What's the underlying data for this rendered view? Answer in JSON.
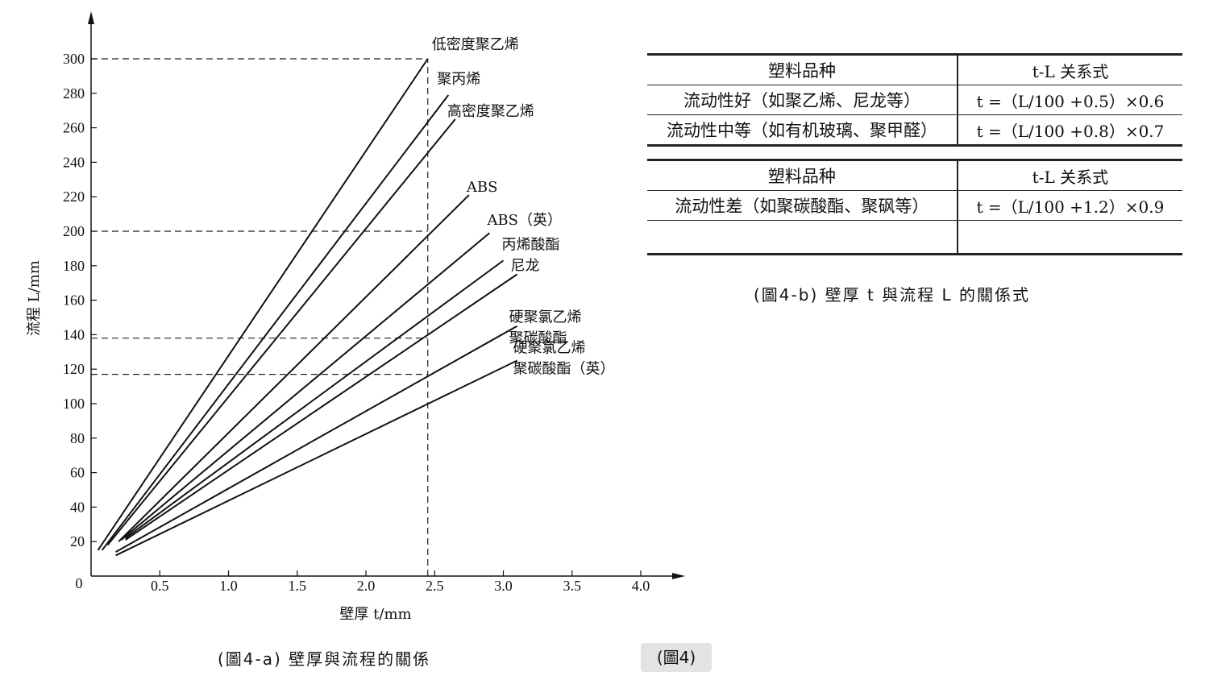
{
  "chart_data": {
    "type": "line",
    "title": "",
    "xlabel": "壁厚 t/mm",
    "ylabel": "流程 L/mm",
    "origin_label": "0",
    "xlim": [
      0,
      4.3
    ],
    "ylim": [
      0,
      320
    ],
    "x_ticks": [
      0.5,
      1.0,
      1.5,
      2.0,
      2.5,
      3.0,
      3.5,
      4.0
    ],
    "x_tick_labels": [
      "0.5",
      "1.0",
      "1.5",
      "2.0",
      "2.5",
      "3.0",
      "3.5",
      "4.0"
    ],
    "y_ticks": [
      20,
      40,
      60,
      80,
      100,
      120,
      140,
      160,
      180,
      200,
      220,
      240,
      260,
      280,
      300
    ],
    "y_tick_labels": [
      "20",
      "40",
      "60",
      "80",
      "100",
      "120",
      "140",
      "160",
      "180",
      "200",
      "220",
      "240",
      "260",
      "280",
      "300"
    ],
    "grid": false,
    "series": [
      {
        "name": "低密度聚乙烯",
        "x": [
          0.05,
          2.45
        ],
        "y": [
          15,
          300
        ]
      },
      {
        "name": "聚丙烯",
        "x": [
          0.08,
          2.6
        ],
        "y": [
          15,
          279
        ]
      },
      {
        "name": "高密度聚乙烯",
        "x": [
          0.12,
          2.65
        ],
        "y": [
          18,
          265
        ]
      },
      {
        "name": "ABS",
        "x": [
          0.2,
          2.75
        ],
        "y": [
          20,
          221
        ]
      },
      {
        "name": "ABS（英）",
        "x": [
          0.22,
          2.9
        ],
        "y": [
          21,
          199
        ]
      },
      {
        "name": "丙烯酸酯",
        "x": [
          0.25,
          3.0
        ],
        "y": [
          22,
          183
        ]
      },
      {
        "name": "尼龙",
        "x": [
          0.25,
          3.1
        ],
        "y": [
          21,
          175
        ]
      },
      {
        "name": "硬聚氯乙烯 聚碳酸酯",
        "x": [
          0.18,
          3.1
        ],
        "y": [
          14,
          145
        ]
      },
      {
        "name": "硬聚氯乙烯 聚碳酸酯（英）",
        "x": [
          0.18,
          3.1
        ],
        "y": [
          12,
          125
        ]
      }
    ],
    "reference_lines": {
      "vertical_x": 2.45,
      "horizontal_y": [
        300,
        200,
        138,
        117
      ]
    }
  },
  "figure_a_caption": "(圖4-a)  壁厚與流程的關係",
  "figure_b_caption": "(圖4-b)  壁厚 t 與流程 L 的關係式",
  "figure_badge": "(圖4)",
  "table_1": {
    "headers": [
      "塑料品种",
      "t-L 关系式"
    ],
    "rows": [
      [
        "流动性好（如聚乙烯、尼龙等）",
        "t =（L/100 +0.5）×0.6"
      ],
      [
        "流动性中等（如有机玻璃、聚甲醛）",
        "t =（L/100 +0.8）×0.7"
      ]
    ]
  },
  "table_2": {
    "headers": [
      "塑料品种",
      "t-L 关系式"
    ],
    "rows": [
      [
        "流动性差（如聚碳酸酯、聚砜等）",
        "t =（L/100 +1.2）×0.9"
      ],
      [
        "",
        ""
      ]
    ]
  }
}
